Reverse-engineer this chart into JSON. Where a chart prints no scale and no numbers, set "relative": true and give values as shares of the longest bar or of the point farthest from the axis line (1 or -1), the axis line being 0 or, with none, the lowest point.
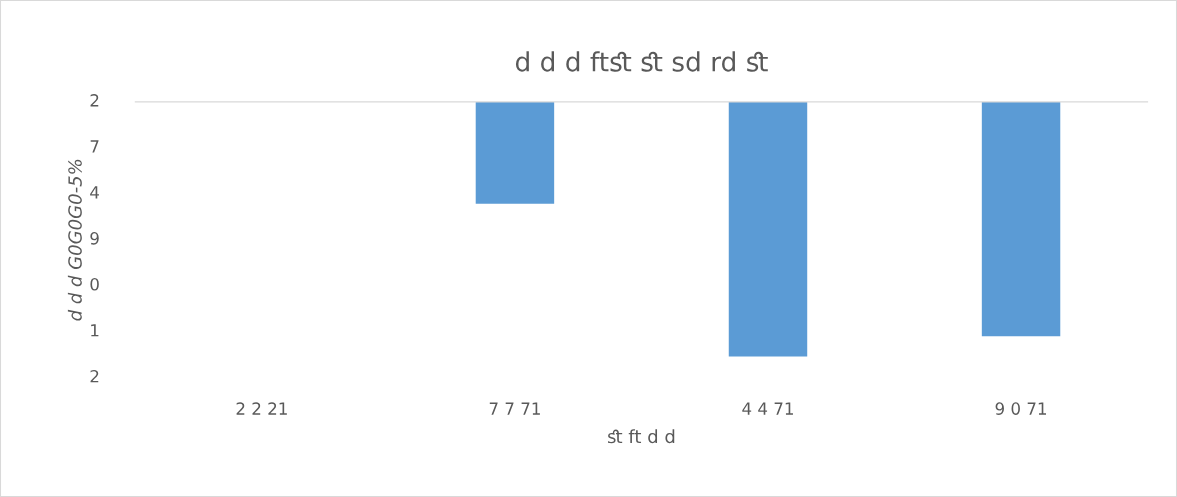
{
  "chart_data": {
    "type": "bar",
    "title": "d d d ftﬆ ﬆ sd rd ﬆ",
    "xlabel": "ﬆ ft d d",
    "ylabel": "d d d G0G0G0-5%",
    "categories": [
      "2 2 21",
      "7 7 71",
      "4 4 71",
      "9 0 71"
    ],
    "values": [
      0,
      -0.4,
      -1,
      -0.92
    ],
    "color": "#5b9bd5",
    "relative": true,
    "annotations": [
      "2",
      "7",
      "4",
      "9",
      "0",
      "1",
      "2"
    ],
    "grid": false,
    "legend": false
  }
}
